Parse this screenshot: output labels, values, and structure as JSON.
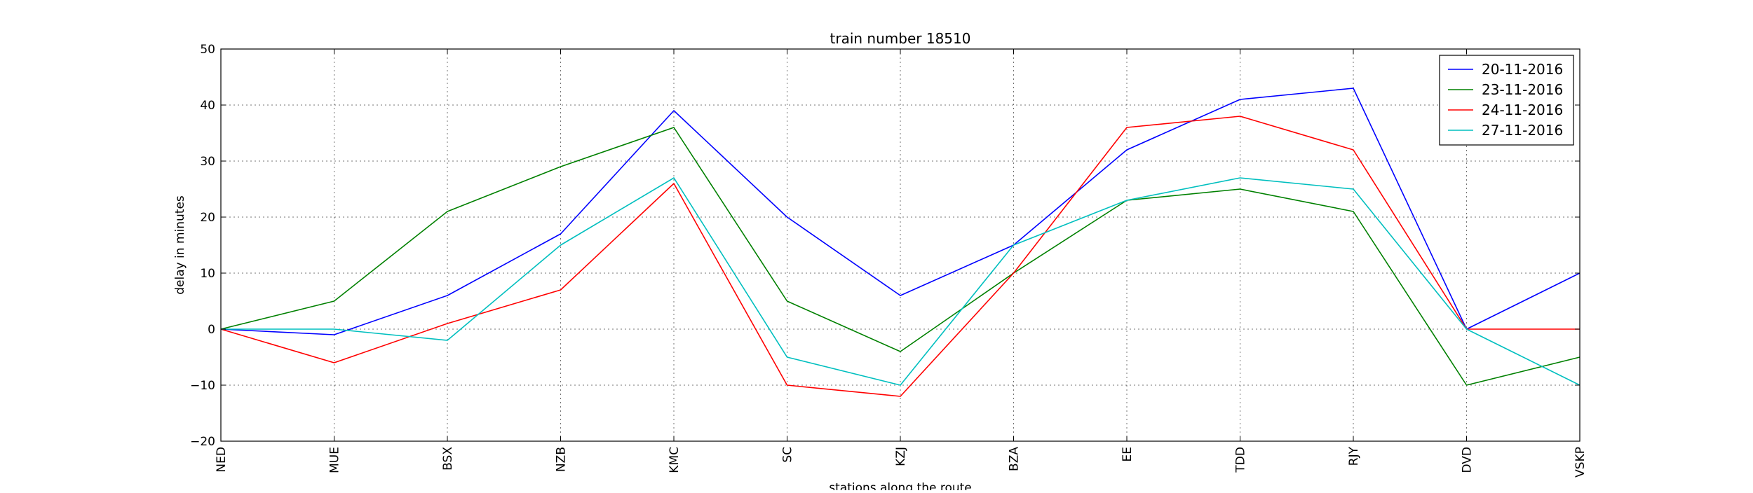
{
  "chart_data": {
    "type": "line",
    "title": "train number 18510",
    "xlabel": "stations along the route",
    "ylabel": "delay in minutes",
    "categories": [
      "NED",
      "MUE",
      "BSX",
      "NZB",
      "KMC",
      "SC",
      "KZJ",
      "BZA",
      "EE",
      "TDD",
      "RJY",
      "DVD",
      "VSKP"
    ],
    "ylim": [
      -20,
      50
    ],
    "yticks": [
      -20,
      -10,
      0,
      10,
      20,
      30,
      40,
      50
    ],
    "grid": true,
    "legend_position": "top-right",
    "series": [
      {
        "name": "20-11-2016",
        "color": "#0000ff",
        "values": [
          0,
          -1,
          6,
          17,
          39,
          20,
          6,
          15,
          32,
          41,
          43,
          0,
          10
        ]
      },
      {
        "name": "23-11-2016",
        "color": "#008000",
        "values": [
          0,
          5,
          21,
          29,
          36,
          5,
          -4,
          10,
          23,
          25,
          21,
          -10,
          -5
        ]
      },
      {
        "name": "24-11-2016",
        "color": "#ff0000",
        "values": [
          0,
          -6,
          1,
          7,
          26,
          -10,
          -12,
          10,
          36,
          38,
          32,
          0,
          0
        ]
      },
      {
        "name": "27-11-2016",
        "color": "#00bfbf",
        "values": [
          0,
          0,
          -2,
          15,
          27,
          -5,
          -10,
          15,
          23,
          27,
          25,
          0,
          -10
        ]
      }
    ]
  }
}
